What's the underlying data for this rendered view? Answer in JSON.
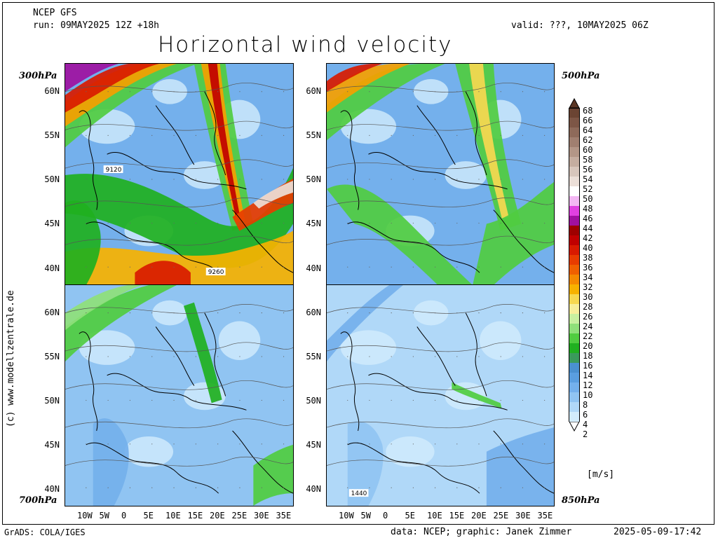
{
  "header": {
    "model": "NCEP GFS",
    "run": "run: 09MAY2025 12Z +18h",
    "valid": "valid: ???, 10MAY2025 06Z",
    "title": "Horizontal wind velocity"
  },
  "panels": [
    {
      "level": "300hPa",
      "contour_labels": [
        "9120",
        "9260"
      ],
      "intensity": "high"
    },
    {
      "level": "500hPa",
      "contour_labels": [],
      "intensity": "medium"
    },
    {
      "level": "700hPa",
      "contour_labels": [],
      "intensity": "low"
    },
    {
      "level": "850hPa",
      "contour_labels": [
        "1440"
      ],
      "intensity": "low"
    }
  ],
  "lat_labels": [
    "60N",
    "55N",
    "50N",
    "45N",
    "40N"
  ],
  "lon_labels": [
    "10W",
    "5W",
    "0",
    "5E",
    "10E",
    "15E",
    "20E",
    "25E",
    "30E",
    "35E"
  ],
  "colorbar": {
    "unit": "[m/s]",
    "values": [
      "68",
      "66",
      "64",
      "62",
      "60",
      "58",
      "56",
      "54",
      "52",
      "50",
      "48",
      "46",
      "44",
      "42",
      "40",
      "38",
      "36",
      "34",
      "32",
      "30",
      "28",
      "26",
      "24",
      "22",
      "20",
      "18",
      "16",
      "14",
      "12",
      "10",
      "8",
      "6",
      "4",
      "2"
    ],
    "colors": [
      "#5a3524",
      "#6b4433",
      "#7d5646",
      "#8e6a5a",
      "#a07f70",
      "#b39687",
      "#c5ada0",
      "#d8c6bc",
      "#ecdfd8",
      "#ffffff",
      "#f3b7f3",
      "#e040e0",
      "#a010a0",
      "#9e0000",
      "#c00000",
      "#d81a00",
      "#e83c00",
      "#f06000",
      "#f58a00",
      "#f7b200",
      "#f7d850",
      "#f7ee9a",
      "#c8f0a0",
      "#8fe07a",
      "#50cc40",
      "#20b020",
      "#3a9a5c",
      "#4a90d0",
      "#5a9ee0",
      "#74b0ec",
      "#90c4f2",
      "#b0d8f8",
      "#d2ecfc",
      "#ffffff"
    ]
  },
  "credit_left": "(c) www.modellzentrale.de",
  "footer": {
    "left": "GrADS: COLA/IGES",
    "center": "data: NCEP; graphic: Janek Zimmer",
    "right": "2025-05-09-17:42"
  }
}
